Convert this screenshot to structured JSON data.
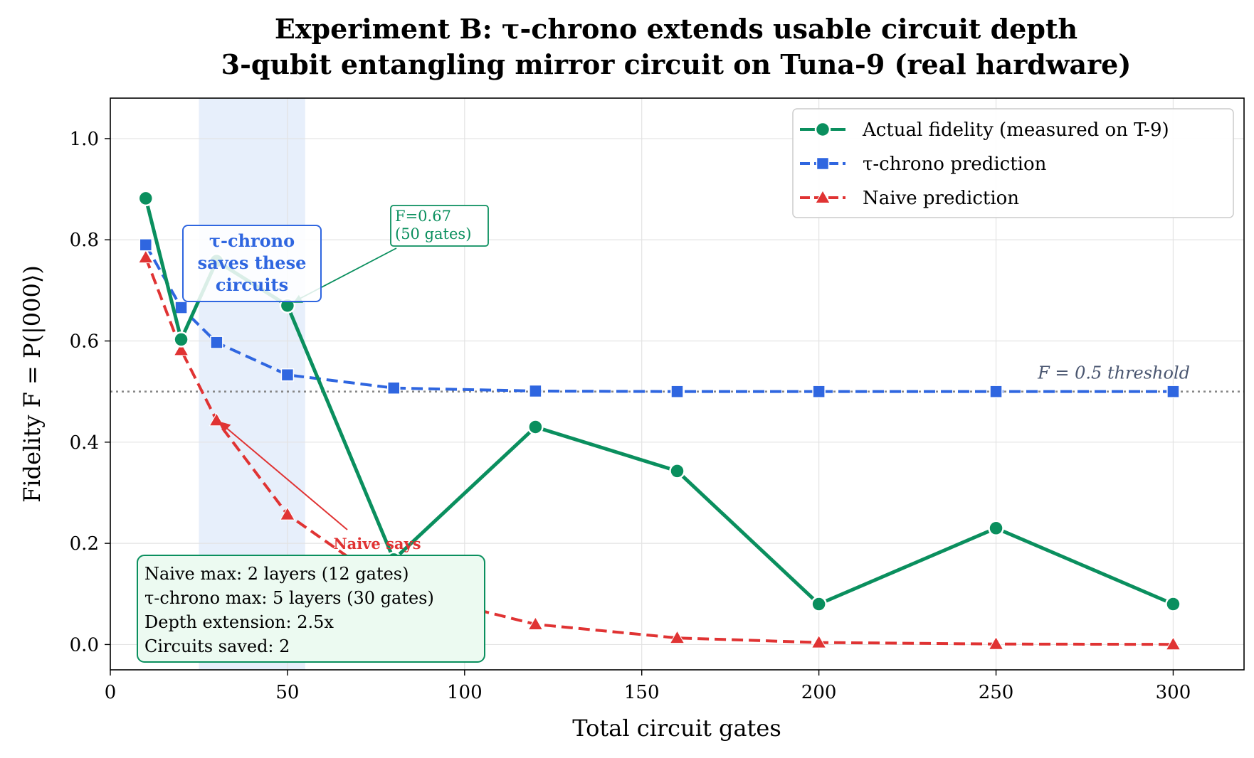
{
  "chart_data": {
    "type": "line",
    "title_line1": "Experiment B: τ-chrono extends usable circuit depth",
    "title_line2": "3-qubit entangling mirror circuit on Tuna-9 (real hardware)",
    "xlabel": "Total circuit gates",
    "ylabel": "Fidelity F = P(|000⟩)",
    "xlim": [
      0,
      320
    ],
    "ylim": [
      -0.05,
      1.08
    ],
    "x_ticks": [
      0,
      50,
      100,
      150,
      200,
      250,
      300
    ],
    "y_ticks": [
      0.0,
      0.2,
      0.4,
      0.6,
      0.8,
      1.0
    ],
    "x_tick_labels": [
      "0",
      "50",
      "100",
      "150",
      "200",
      "250",
      "300"
    ],
    "y_tick_labels": [
      "0.0",
      "0.2",
      "0.4",
      "0.6",
      "0.8",
      "1.0"
    ],
    "grid": true,
    "legend_position": "top-right",
    "series": [
      {
        "name": "Actual fidelity (measured on T-9)",
        "color": "#0a8f5e",
        "style": "solid",
        "marker": "circle",
        "x": [
          10,
          20,
          30,
          50,
          80,
          120,
          160,
          200,
          250,
          300
        ],
        "y": [
          0.882,
          0.603,
          0.758,
          0.67,
          0.168,
          0.43,
          0.343,
          0.08,
          0.23,
          0.08
        ]
      },
      {
        "name": "τ-chrono prediction",
        "color": "#2f66e0",
        "style": "dashed",
        "marker": "square",
        "x": [
          10,
          20,
          30,
          50,
          80,
          120,
          160,
          200,
          250,
          300
        ],
        "y": [
          0.79,
          0.666,
          0.597,
          0.533,
          0.507,
          0.501,
          0.5,
          0.5,
          0.5,
          0.5
        ]
      },
      {
        "name": "Naive prediction",
        "color": "#e03333",
        "style": "dashed",
        "marker": "triangle",
        "x": [
          10,
          20,
          30,
          50,
          80,
          120,
          160,
          200,
          250,
          300
        ],
        "y": [
          0.765,
          0.582,
          0.443,
          0.257,
          0.11,
          0.04,
          0.013,
          0.004,
          0.001,
          0.0003
        ]
      }
    ],
    "threshold": {
      "y": 0.5,
      "label": "F = 0.5 threshold",
      "color": "#888888"
    },
    "shaded_region": {
      "x_start": 25,
      "x_end": 55,
      "color": "#d4e1f8"
    },
    "annotations": {
      "tau_box": {
        "lines": [
          "τ-chrono",
          "saves these",
          "circuits"
        ],
        "color": "#2f66e0"
      },
      "point_label": {
        "lines": [
          "F=0.67",
          "(50 gates)"
        ],
        "color": "#0a8f5e"
      },
      "naive_label": {
        "text": "Naive says",
        "color": "#e03333"
      },
      "stats_box": {
        "lines": [
          "Naive max: 2 layers (12 gates)",
          "τ-chrono max: 5 layers (30 gates)",
          "Depth extension: 2.5x",
          "Circuits saved: 2"
        ]
      }
    }
  }
}
